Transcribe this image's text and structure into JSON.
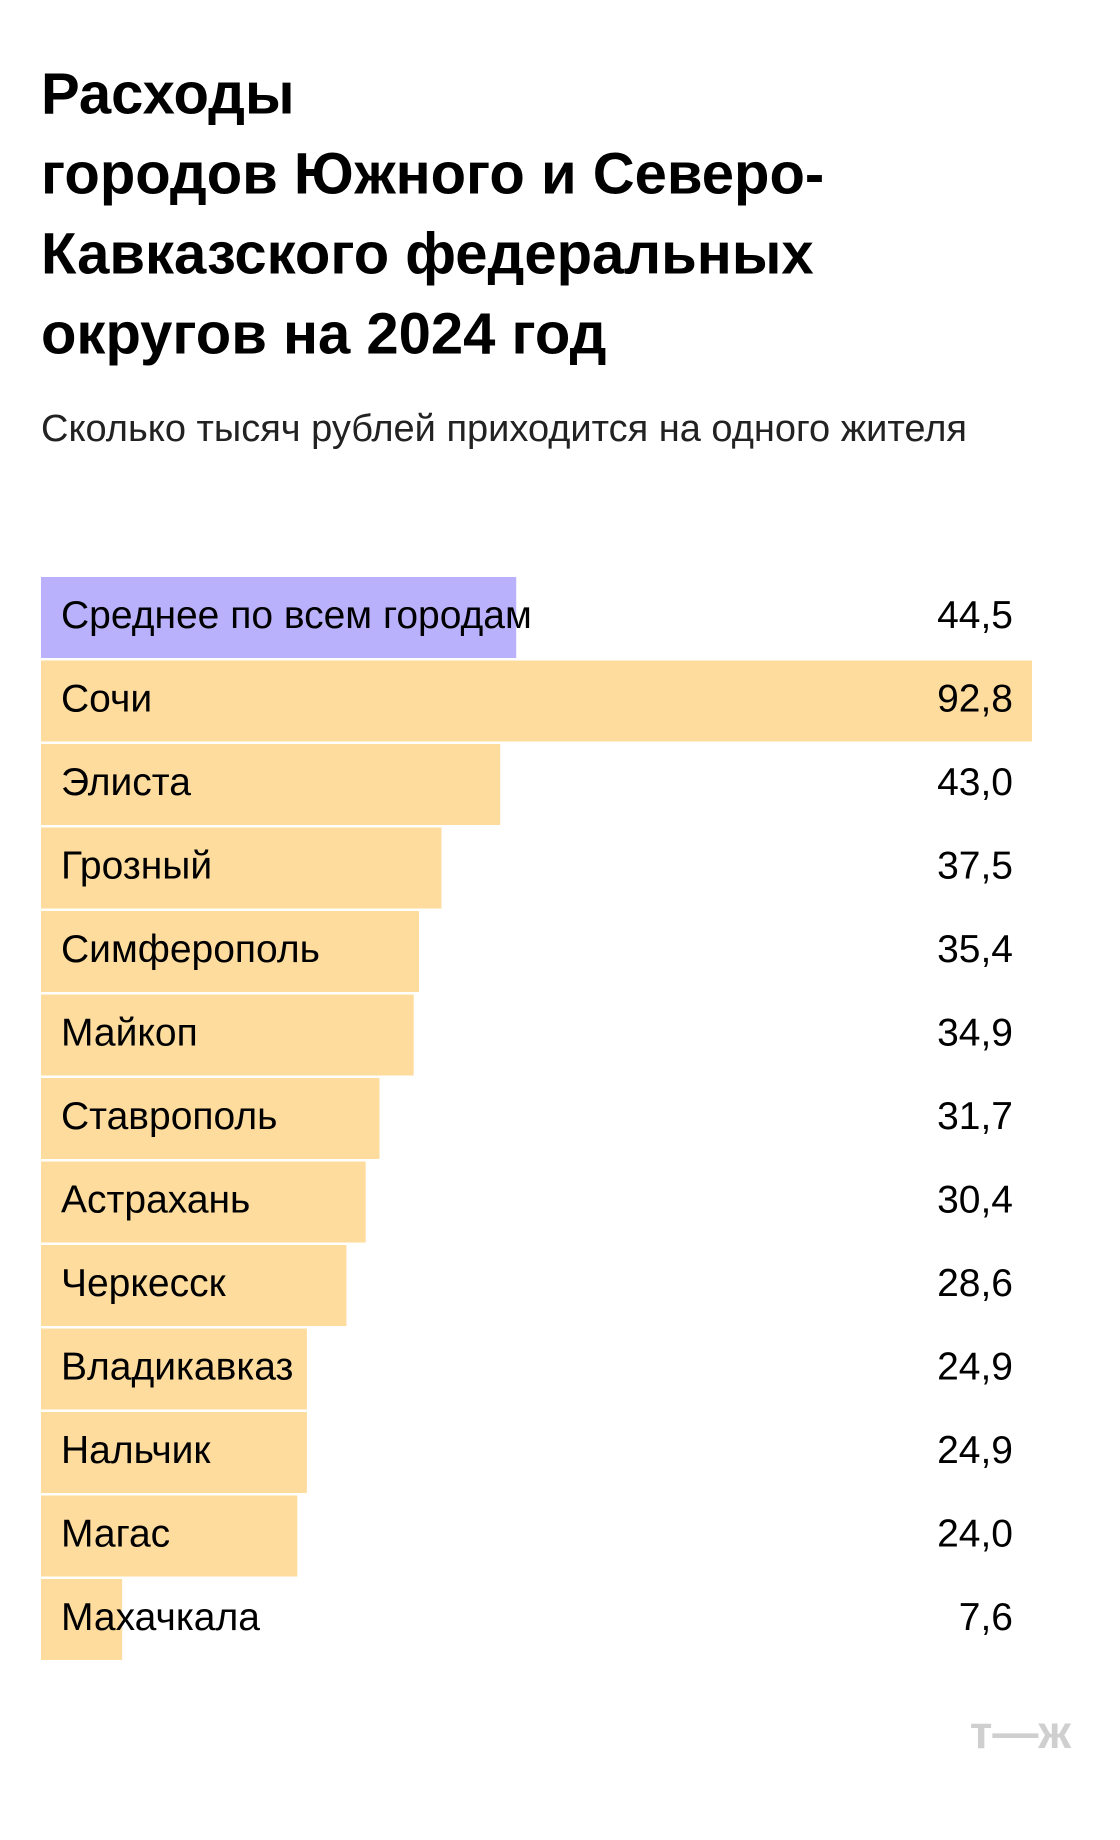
{
  "chart_data": {
    "type": "bar",
    "title": [
      "Расходы",
      "городов Южного и Северо-",
      "Кавказского федеральных",
      "округов на 2024 год"
    ],
    "subtitle": "Сколько тысяч рублей приходится на одного жителя",
    "categories": [
      "Среднее по всем городам",
      "Сочи",
      "Элиста",
      "Грозный",
      "Симферополь",
      "Майкоп",
      "Ставрополь",
      "Астрахань",
      "Черкесск",
      "Владикавказ",
      "Нальчик",
      "Магас",
      "Махачкала"
    ],
    "values": [
      44.5,
      92.8,
      43.0,
      37.5,
      35.4,
      34.9,
      31.7,
      30.4,
      28.6,
      24.9,
      24.9,
      24.0,
      7.6
    ],
    "value_labels": [
      "44,5",
      "92,8",
      "43,0",
      "37,5",
      "35,4",
      "34,9",
      "31,7",
      "30,4",
      "28,6",
      "24,9",
      "24,9",
      "24,0",
      "7,6"
    ],
    "colors": [
      "#b9b1fb",
      "#fddc9e",
      "#fddc9e",
      "#fddc9e",
      "#fddc9e",
      "#fddc9e",
      "#fddc9e",
      "#fddc9e",
      "#fddc9e",
      "#fddc9e",
      "#fddc9e",
      "#fddc9e",
      "#fddc9e"
    ],
    "xlim": [
      0,
      92.8
    ],
    "logo": "т—ж"
  }
}
